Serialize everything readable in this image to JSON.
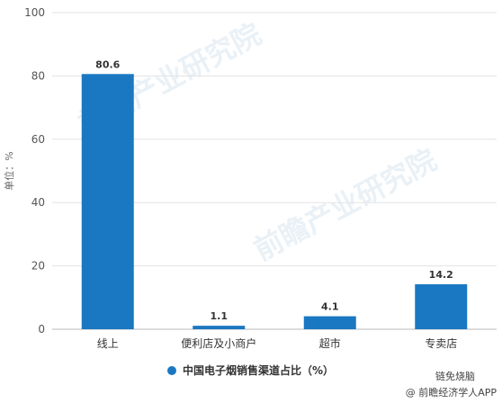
{
  "chart_data": {
    "type": "bar",
    "categories": [
      "线上",
      "便利店及小商户",
      "超市",
      "专卖店"
    ],
    "series": [
      {
        "name": "中国电子烟销售渠道占比（%）",
        "values": [
          80.6,
          1.1,
          4.1,
          14.2
        ]
      }
    ],
    "data_labels": [
      "80.6",
      "1.1",
      "4.1",
      "14.2"
    ],
    "ylabel": "单位：%",
    "ylim": [
      0,
      100
    ],
    "yticks": [
      0,
      20,
      40,
      60,
      80,
      100
    ],
    "grid": true,
    "legend_position": "bottom-center",
    "bar_color": "#1a78c2"
  },
  "watermark": "前瞻产业研究院",
  "footer": {
    "wechat": "链免烧脑",
    "app": "@ 前瞻经济学人APP"
  }
}
